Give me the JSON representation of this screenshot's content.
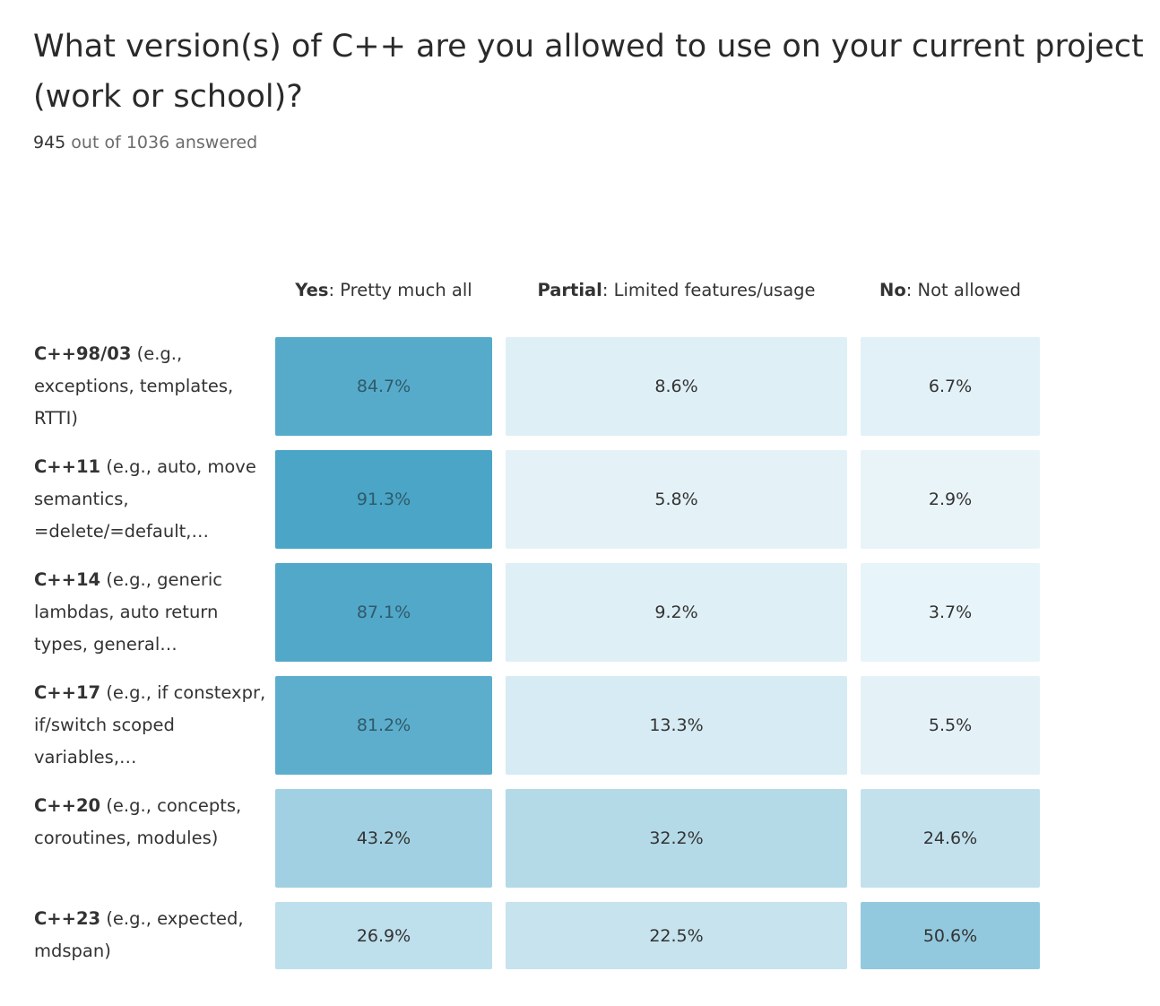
{
  "title": "What version(s) of C++ are you allowed to use on your current project (work or school)?",
  "answered": {
    "count": "945",
    "rest": " out of 1036 answered"
  },
  "columns": [
    {
      "bold": "Yes",
      "rest": ": Pretty much all"
    },
    {
      "bold": "Partial",
      "rest": ": Limited features/usage"
    },
    {
      "bold": "No",
      "rest": ": Not allowed"
    }
  ],
  "rows": [
    {
      "bold": "C++98/03",
      "rest": " (e.g., exceptions, templates, RTTI)"
    },
    {
      "bold": "C++11",
      "rest": " (e.g., auto, move semantics, =delete/=default,…"
    },
    {
      "bold": "C++14",
      "rest": " (e.g., generic lambdas, auto return types, general…"
    },
    {
      "bold": "C++17",
      "rest": " (e.g., if constexpr, if/switch scoped variables,…"
    },
    {
      "bold": "C++20",
      "rest": " (e.g., concepts, coroutines, modules)"
    },
    {
      "bold": "C++23",
      "rest": " (e.g., expected, mdspan)"
    }
  ],
  "colors": {
    "low": "#eef7fb",
    "high": "#49a4c6",
    "text": "#333333"
  },
  "chart_data": {
    "type": "heatmap",
    "title": "What version(s) of C++ are you allowed to use on your current project (work or school)?",
    "columns": [
      "Yes: Pretty much all",
      "Partial: Limited features/usage",
      "No: Not allowed"
    ],
    "rows": [
      "C++98/03",
      "C++11",
      "C++14",
      "C++17",
      "C++20",
      "C++23"
    ],
    "unit": "%",
    "values": [
      [
        84.7,
        8.6,
        6.7
      ],
      [
        91.3,
        5.8,
        2.9
      ],
      [
        87.1,
        9.2,
        3.7
      ],
      [
        81.2,
        13.3,
        5.5
      ],
      [
        43.2,
        32.2,
        24.6
      ],
      [
        26.9,
        22.5,
        50.6
      ]
    ],
    "labels": [
      [
        "84.7%",
        "8.6%",
        "6.7%"
      ],
      [
        "91.3%",
        "5.8%",
        "2.9%"
      ],
      [
        "87.1%",
        "9.2%",
        "3.7%"
      ],
      [
        "81.2%",
        "13.3%",
        "5.5%"
      ],
      [
        "43.2%",
        "32.2%",
        "24.6%"
      ],
      [
        "26.9%",
        "22.5%",
        "50.6%"
      ]
    ]
  }
}
